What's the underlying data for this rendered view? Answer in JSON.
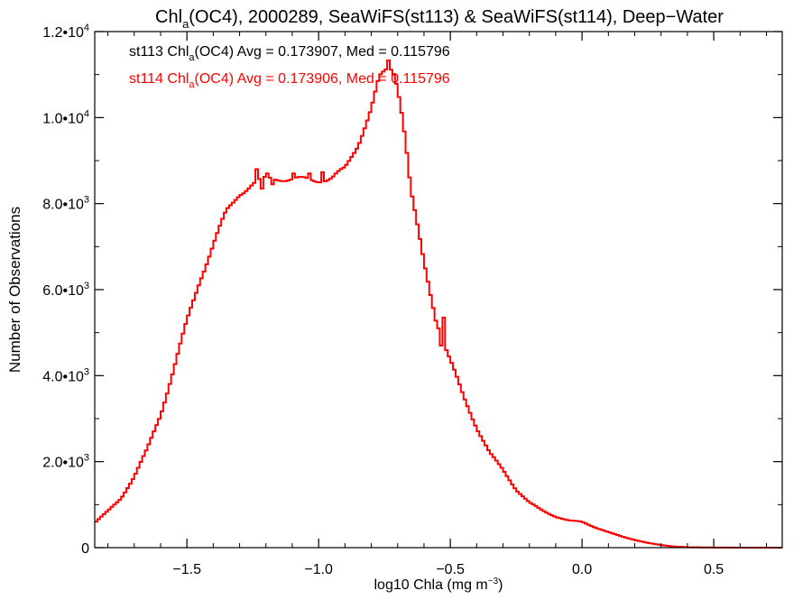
{
  "chart_data": {
    "type": "histogram-step",
    "title": {
      "prefix": "Chl",
      "sub": "a",
      "suffix": "(OC4), 2000289, SeaWiFS(st113) & SeaWiFS(st114), Deep−Water"
    },
    "xlabel": {
      "main": "log10 Chla (mg m",
      "sup": "−3",
      "close": ")"
    },
    "ylabel": "Number of Observations",
    "xlim": [
      -1.85,
      0.76
    ],
    "ylim": [
      0,
      12000
    ],
    "x_ticks": [
      {
        "value": -1.5,
        "label": "−1.5"
      },
      {
        "value": -1.0,
        "label": "−1.0"
      },
      {
        "value": -0.5,
        "label": "−0.5"
      },
      {
        "value": 0.0,
        "label": "0.0"
      },
      {
        "value": 0.5,
        "label": "0.5"
      }
    ],
    "y_ticks": [
      {
        "value": 0,
        "mantissa": "0",
        "exp": ""
      },
      {
        "value": 2000,
        "mantissa": "2.0•10",
        "exp": "3"
      },
      {
        "value": 4000,
        "mantissa": "4.0•10",
        "exp": "3"
      },
      {
        "value": 6000,
        "mantissa": "6.0•10",
        "exp": "3"
      },
      {
        "value": 8000,
        "mantissa": "8.0•10",
        "exp": "3"
      },
      {
        "value": 10000,
        "mantissa": "1.0•10",
        "exp": "4"
      },
      {
        "value": 12000,
        "mantissa": "1.2•10",
        "exp": "4"
      }
    ],
    "grid": false,
    "legend_position": "top-left",
    "series": [
      {
        "name": "st113",
        "color": "#000000",
        "label": {
          "pre": "st113 Chl",
          "sub": "a",
          "post": "(OC4) Avg = 0.173907, Med = 0.115796"
        }
      },
      {
        "name": "st114",
        "color": "#ff0000",
        "label": {
          "pre": "st114 Chl",
          "sub": "a",
          "post": "(OC4) Avg = 0.173906, Med = 0.115796"
        }
      }
    ],
    "line_color": "#ff0000",
    "bin_width": 0.01,
    "points": [
      [
        -1.85,
        580
      ],
      [
        -1.8,
        850
      ],
      [
        -1.75,
        1150
      ],
      [
        -1.7,
        1650
      ],
      [
        -1.65,
        2300
      ],
      [
        -1.6,
        3100
      ],
      [
        -1.55,
        4150
      ],
      [
        -1.5,
        5250
      ],
      [
        -1.45,
        6250
      ],
      [
        -1.4,
        7050
      ],
      [
        -1.35,
        7800
      ],
      [
        -1.3,
        8250
      ],
      [
        -1.25,
        8450
      ],
      [
        -1.2,
        8570
      ],
      [
        -1.15,
        8600
      ],
      [
        -1.1,
        8560
      ],
      [
        -1.05,
        8550
      ],
      [
        -1.0,
        8560
      ],
      [
        -0.95,
        8580
      ],
      [
        -0.9,
        8800
      ],
      [
        -0.85,
        9400
      ],
      [
        -0.8,
        10200
      ],
      [
        -0.77,
        10900
      ],
      [
        -0.75,
        11050
      ],
      [
        -0.73,
        11180
      ],
      [
        -0.71,
        11000
      ],
      [
        -0.69,
        10400
      ],
      [
        -0.67,
        9500
      ],
      [
        -0.65,
        8300
      ],
      [
        -0.6,
        6600
      ],
      [
        -0.55,
        5200
      ],
      [
        -0.5,
        4350
      ],
      [
        -0.45,
        3500
      ],
      [
        -0.4,
        2800
      ],
      [
        -0.35,
        2200
      ],
      [
        -0.3,
        1800
      ],
      [
        -0.25,
        1350
      ],
      [
        -0.2,
        1050
      ],
      [
        -0.15,
        860
      ],
      [
        -0.1,
        720
      ],
      [
        -0.05,
        630
      ],
      [
        0.0,
        600
      ],
      [
        0.05,
        470
      ],
      [
        0.1,
        360
      ],
      [
        0.15,
        260
      ],
      [
        0.2,
        180
      ],
      [
        0.25,
        110
      ],
      [
        0.3,
        60
      ],
      [
        0.35,
        25
      ],
      [
        0.4,
        10
      ],
      [
        0.5,
        3
      ],
      [
        0.6,
        1
      ],
      [
        0.7,
        0
      ],
      [
        0.76,
        0
      ]
    ],
    "spikes": [
      [
        -1.24,
        8800
      ],
      [
        -1.22,
        8350
      ],
      [
        -1.2,
        8700
      ],
      [
        -1.18,
        8450
      ],
      [
        -1.1,
        8700
      ],
      [
        -1.04,
        8700
      ],
      [
        -0.99,
        8730
      ],
      [
        -0.74,
        11330
      ],
      [
        -0.55,
        5100
      ],
      [
        -0.54,
        4700
      ],
      [
        -0.53,
        5350
      ]
    ]
  }
}
